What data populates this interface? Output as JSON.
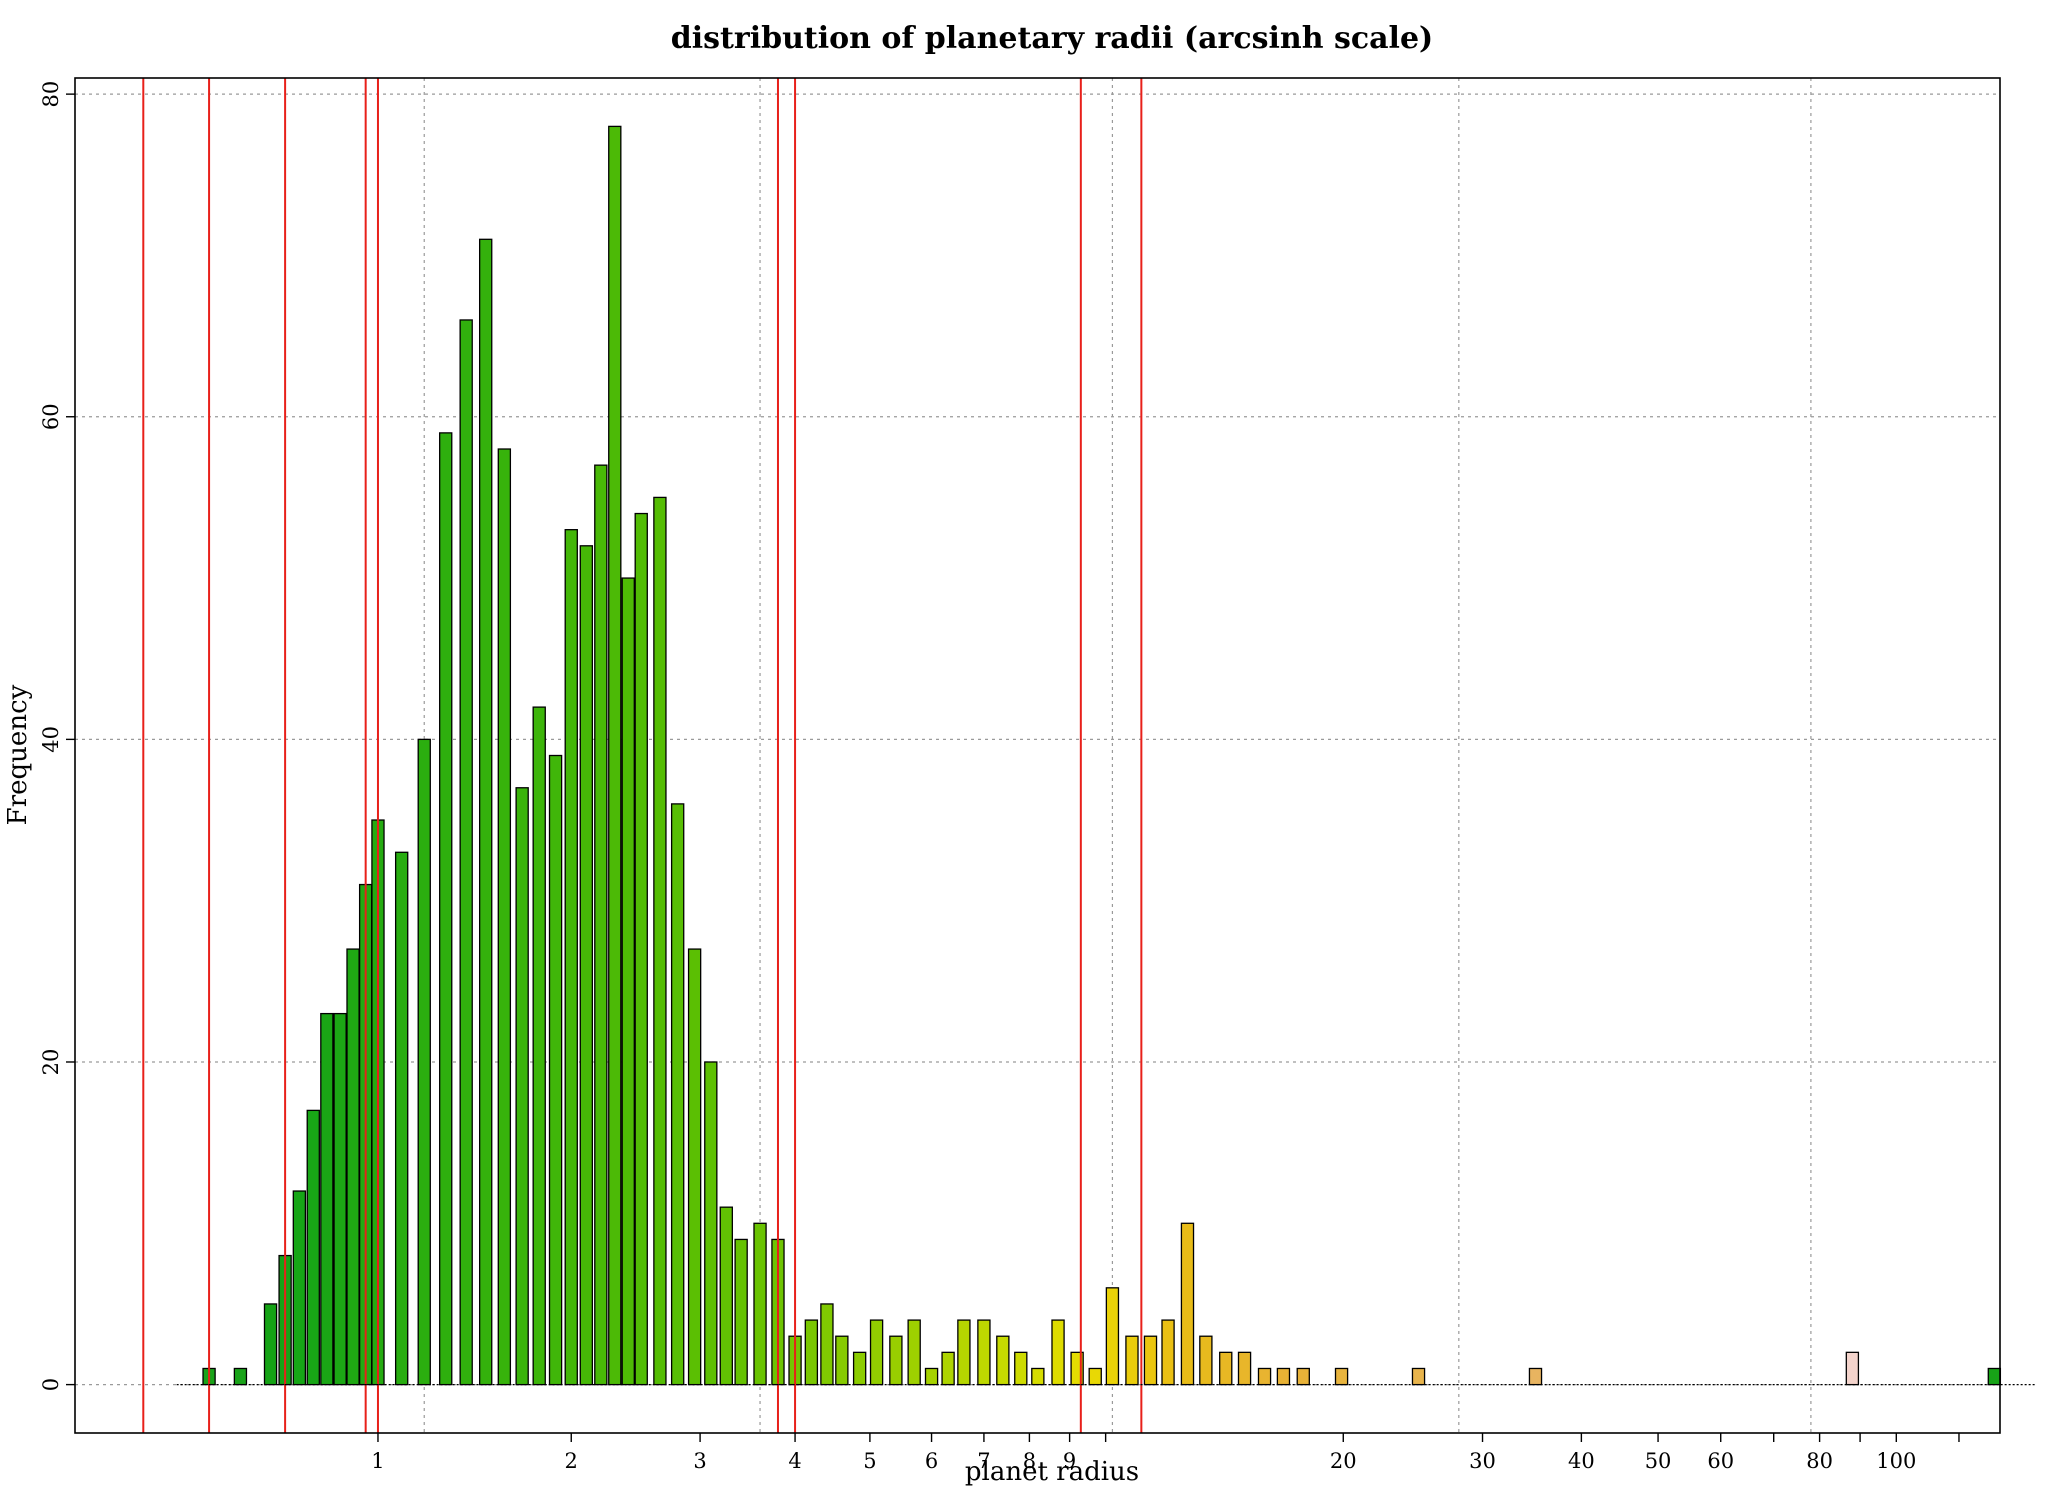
{
  "chart_data": {
    "type": "bar",
    "title": "distribution of planetary radii (arcsinh scale)",
    "xlabel": "planet radius",
    "ylabel": "Frequency",
    "scale": "arcsinh",
    "ylim": [
      -3,
      81
    ],
    "xlim_asinh": [
      0.0,
      5.6
    ],
    "grid": true,
    "x_ticks": [
      {
        "value": 1,
        "label": "1"
      },
      {
        "value": 2,
        "label": "2"
      },
      {
        "value": 3,
        "label": "3"
      },
      {
        "value": 4,
        "label": "4"
      },
      {
        "value": 5,
        "label": "5"
      },
      {
        "value": 6,
        "label": "6"
      },
      {
        "value": 7,
        "label": "7"
      },
      {
        "value": 8,
        "label": "8"
      },
      {
        "value": 9,
        "label": "9"
      },
      {
        "value": 10,
        "label": ""
      },
      {
        "value": 20,
        "label": "20"
      },
      {
        "value": 30,
        "label": "30"
      },
      {
        "value": 40,
        "label": "40"
      },
      {
        "value": 50,
        "label": "50"
      },
      {
        "value": 60,
        "label": "60"
      },
      {
        "value": 70,
        "label": ""
      },
      {
        "value": 80,
        "label": "80"
      },
      {
        "value": 90,
        "label": ""
      },
      {
        "value": 100,
        "label": "100"
      },
      {
        "value": 120,
        "label": ""
      }
    ],
    "y_ticks": [
      {
        "value": 0,
        "label": "0"
      },
      {
        "value": 20,
        "label": "20"
      },
      {
        "value": 40,
        "label": "40"
      },
      {
        "value": 60,
        "label": "60"
      },
      {
        "value": 80,
        "label": "80"
      }
    ],
    "x_grid_lines": [
      1.2,
      3.6,
      10.2,
      28,
      78
    ],
    "y_grid_lines": [
      0,
      20,
      40,
      60,
      80
    ],
    "red_lines": [
      0.2,
      0.4,
      0.65,
      0.95,
      1.0,
      3.8,
      4.0,
      9.3,
      11.1
    ],
    "bars": [
      {
        "x": 0.4,
        "count": 1,
        "color": "#19a319"
      },
      {
        "x": 0.5,
        "count": 1,
        "color": "#19a319"
      },
      {
        "x": 0.6,
        "count": 5,
        "color": "#15a315"
      },
      {
        "x": 0.65,
        "count": 8,
        "color": "#15a316"
      },
      {
        "x": 0.7,
        "count": 12,
        "color": "#16a616"
      },
      {
        "x": 0.75,
        "count": 17,
        "color": "#18a616"
      },
      {
        "x": 0.8,
        "count": 23,
        "color": "#1aa615"
      },
      {
        "x": 0.85,
        "count": 23,
        "color": "#1ca815"
      },
      {
        "x": 0.9,
        "count": 27,
        "color": "#1fa813"
      },
      {
        "x": 0.95,
        "count": 31,
        "color": "#22aa12"
      },
      {
        "x": 1.0,
        "count": 35,
        "color": "#25ab11"
      },
      {
        "x": 1.1,
        "count": 33,
        "color": "#28ad10"
      },
      {
        "x": 1.2,
        "count": 40,
        "color": "#2bae0f"
      },
      {
        "x": 1.3,
        "count": 59,
        "color": "#2eaf0e"
      },
      {
        "x": 1.4,
        "count": 66,
        "color": "#31b00d"
      },
      {
        "x": 1.5,
        "count": 71,
        "color": "#34b10c"
      },
      {
        "x": 1.6,
        "count": 58,
        "color": "#37b30b"
      },
      {
        "x": 1.7,
        "count": 37,
        "color": "#3ab40a"
      },
      {
        "x": 1.8,
        "count": 42,
        "color": "#3db50a"
      },
      {
        "x": 1.9,
        "count": 39,
        "color": "#40b609"
      },
      {
        "x": 2.0,
        "count": 53,
        "color": "#43b708"
      },
      {
        "x": 2.1,
        "count": 52,
        "color": "#46b807"
      },
      {
        "x": 2.2,
        "count": 57,
        "color": "#49b907"
      },
      {
        "x": 2.3,
        "count": 78,
        "color": "#4cba06"
      },
      {
        "x": 2.4,
        "count": 50,
        "color": "#4fbb05"
      },
      {
        "x": 2.5,
        "count": 54,
        "color": "#52bc05"
      },
      {
        "x": 2.65,
        "count": 55,
        "color": "#55bd04"
      },
      {
        "x": 2.8,
        "count": 36,
        "color": "#58be04"
      },
      {
        "x": 2.95,
        "count": 27,
        "color": "#5bbf03"
      },
      {
        "x": 3.1,
        "count": 20,
        "color": "#5ec003"
      },
      {
        "x": 3.25,
        "count": 11,
        "color": "#62c103"
      },
      {
        "x": 3.4,
        "count": 9,
        "color": "#66c202"
      },
      {
        "x": 3.6,
        "count": 10,
        "color": "#6ac302"
      },
      {
        "x": 3.8,
        "count": 9,
        "color": "#6ec402"
      },
      {
        "x": 4.0,
        "count": 3,
        "color": "#74c601"
      },
      {
        "x": 4.2,
        "count": 4,
        "color": "#7ac701"
      },
      {
        "x": 4.4,
        "count": 5,
        "color": "#80c901"
      },
      {
        "x": 4.6,
        "count": 3,
        "color": "#86ca01"
      },
      {
        "x": 4.85,
        "count": 2,
        "color": "#8ccc00"
      },
      {
        "x": 5.1,
        "count": 4,
        "color": "#92cd00"
      },
      {
        "x": 5.4,
        "count": 3,
        "color": "#98ce00"
      },
      {
        "x": 5.7,
        "count": 4,
        "color": "#9ed000"
      },
      {
        "x": 6.0,
        "count": 1,
        "color": "#a6d200"
      },
      {
        "x": 6.3,
        "count": 2,
        "color": "#aed400"
      },
      {
        "x": 6.6,
        "count": 4,
        "color": "#b6d600"
      },
      {
        "x": 7.0,
        "count": 4,
        "color": "#bed800"
      },
      {
        "x": 7.4,
        "count": 3,
        "color": "#c6da00"
      },
      {
        "x": 7.8,
        "count": 2,
        "color": "#cedb00"
      },
      {
        "x": 8.2,
        "count": 1,
        "color": "#d6dc00"
      },
      {
        "x": 8.7,
        "count": 4,
        "color": "#dedc00"
      },
      {
        "x": 9.2,
        "count": 2,
        "color": "#e4dc02"
      },
      {
        "x": 9.7,
        "count": 1,
        "color": "#e8d805"
      },
      {
        "x": 10.2,
        "count": 6,
        "color": "#ead208"
      },
      {
        "x": 10.8,
        "count": 3,
        "color": "#eacc0c"
      },
      {
        "x": 11.4,
        "count": 3,
        "color": "#eac610"
      },
      {
        "x": 12.0,
        "count": 4,
        "color": "#eac014"
      },
      {
        "x": 12.7,
        "count": 10,
        "color": "#e8bc18"
      },
      {
        "x": 13.4,
        "count": 3,
        "color": "#e8ba1e"
      },
      {
        "x": 14.2,
        "count": 2,
        "color": "#e8b824"
      },
      {
        "x": 15.0,
        "count": 2,
        "color": "#e8b62a"
      },
      {
        "x": 15.9,
        "count": 1,
        "color": "#e8b430"
      },
      {
        "x": 16.8,
        "count": 1,
        "color": "#e8b234"
      },
      {
        "x": 17.8,
        "count": 1,
        "color": "#e8b238"
      },
      {
        "x": 19.9,
        "count": 1,
        "color": "#e8b43e"
      },
      {
        "x": 24.9,
        "count": 1,
        "color": "#e8b44c"
      },
      {
        "x": 35.0,
        "count": 1,
        "color": "#e8b460"
      },
      {
        "x": 88.0,
        "count": 2,
        "color": "#f4d4cc"
      },
      {
        "x": 133.0,
        "count": 1,
        "color": "#17a317"
      }
    ]
  }
}
